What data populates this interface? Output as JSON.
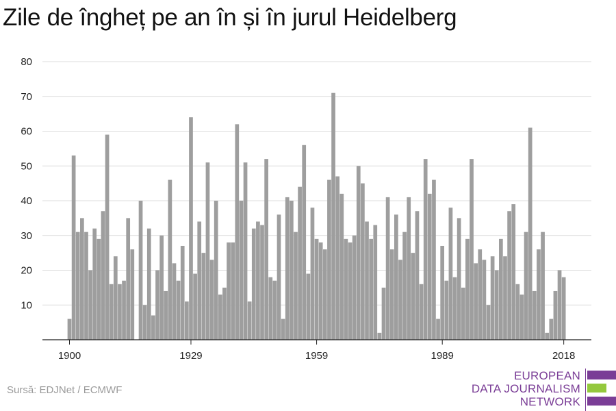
{
  "title": "Zile de îngheț pe an în și în jurul Heidelberg",
  "source": "Sursă: EDJNet / ECMWF",
  "logo": {
    "lines": [
      "EUROPEAN",
      "DATA JOURNALISM",
      "NETWORK"
    ],
    "colors": {
      "purple": "#7a3d96",
      "green": "#94c83d"
    }
  },
  "chart_data": {
    "type": "bar",
    "title": "Zile de îngheț pe an în și în jurul Heidelberg",
    "xlabel": "",
    "ylabel": "",
    "x_ticks": [
      1900,
      1929,
      1959,
      1989,
      2018
    ],
    "y_ticks": [
      10,
      20,
      30,
      40,
      50,
      60,
      70,
      80
    ],
    "ylim": [
      0,
      80
    ],
    "grid": true,
    "bar_color": "#9e9e9e",
    "x": [
      1900,
      1901,
      1902,
      1903,
      1904,
      1905,
      1906,
      1907,
      1908,
      1909,
      1910,
      1911,
      1912,
      1913,
      1914,
      1915,
      1916,
      1917,
      1918,
      1919,
      1920,
      1921,
      1922,
      1923,
      1924,
      1925,
      1926,
      1927,
      1928,
      1929,
      1930,
      1931,
      1932,
      1933,
      1934,
      1935,
      1936,
      1937,
      1938,
      1939,
      1940,
      1941,
      1942,
      1943,
      1944,
      1945,
      1946,
      1947,
      1948,
      1949,
      1950,
      1951,
      1952,
      1953,
      1954,
      1955,
      1956,
      1957,
      1958,
      1959,
      1960,
      1961,
      1962,
      1963,
      1964,
      1965,
      1966,
      1967,
      1968,
      1969,
      1970,
      1971,
      1972,
      1973,
      1974,
      1975,
      1976,
      1977,
      1978,
      1979,
      1980,
      1981,
      1982,
      1983,
      1984,
      1985,
      1986,
      1987,
      1988,
      1989,
      1990,
      1991,
      1992,
      1993,
      1994,
      1995,
      1996,
      1997,
      1998,
      1999,
      2000,
      2001,
      2002,
      2003,
      2004,
      2005,
      2006,
      2007,
      2008,
      2009,
      2010,
      2011,
      2012,
      2013,
      2014,
      2015,
      2016,
      2017,
      2018
    ],
    "values": [
      6,
      53,
      31,
      35,
      31,
      20,
      32,
      29,
      37,
      59,
      16,
      24,
      16,
      17,
      35,
      26,
      0,
      40,
      10,
      32,
      7,
      20,
      30,
      14,
      46,
      22,
      17,
      27,
      11,
      64,
      19,
      34,
      25,
      51,
      23,
      40,
      13,
      15,
      28,
      28,
      62,
      40,
      51,
      11,
      32,
      34,
      33,
      52,
      18,
      17,
      36,
      6,
      41,
      40,
      31,
      44,
      56,
      19,
      38,
      29,
      28,
      26,
      46,
      71,
      47,
      42,
      29,
      28,
      30,
      50,
      45,
      34,
      29,
      33,
      2,
      15,
      41,
      26,
      36,
      23,
      31,
      41,
      25,
      37,
      16,
      52,
      42,
      46,
      6,
      27,
      17,
      38,
      18,
      35,
      15,
      29,
      52,
      22,
      26,
      23,
      10,
      24,
      20,
      29,
      24,
      37,
      39,
      16,
      13,
      31,
      61,
      14,
      26,
      31,
      2,
      6,
      14,
      20,
      18
    ]
  }
}
